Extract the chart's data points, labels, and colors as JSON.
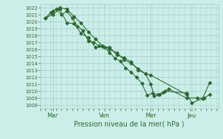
{
  "xlabel": "Pression niveau de la mer( hPa )",
  "bg_color": "#cceee8",
  "grid_color": "#99cccc",
  "line_color": "#2d6a2d",
  "ylim": [
    1007.5,
    1022.5
  ],
  "yticks": [
    1008,
    1009,
    1010,
    1011,
    1012,
    1013,
    1014,
    1015,
    1016,
    1017,
    1018,
    1019,
    1020,
    1021,
    1022
  ],
  "xlim": [
    0,
    100
  ],
  "xtick_labels": [
    "Mar",
    "Ven",
    "Mer",
    "Jeu"
  ],
  "xtick_positions": [
    7,
    36,
    62,
    85
  ],
  "line1_x": [
    3,
    6,
    9,
    12,
    15,
    18,
    21,
    24,
    27,
    30,
    33,
    36,
    39,
    42,
    45,
    48,
    51,
    54,
    57,
    60,
    63,
    66,
    69,
    72,
    82,
    88,
    92,
    95
  ],
  "line1_y": [
    1020.5,
    1021.3,
    1021.8,
    1021.0,
    1021.5,
    1020.5,
    1019.3,
    1018.7,
    1017.2,
    1017.0,
    1016.5,
    1016.3,
    1015.5,
    1014.7,
    1014.3,
    1013.3,
    1012.7,
    1012.0,
    1011.1,
    1009.4,
    1009.7,
    1009.5,
    1009.8,
    1010.3,
    1009.0,
    1009.0,
    1009.0,
    1009.5
  ],
  "line2_x": [
    3,
    7,
    11,
    15,
    19,
    23,
    27,
    31,
    35,
    39,
    43,
    47,
    51,
    55,
    59,
    62,
    64,
    67,
    70,
    82,
    85,
    91,
    95
  ],
  "line2_y": [
    1020.5,
    1021.0,
    1021.8,
    1019.8,
    1019.7,
    1018.3,
    1017.7,
    1016.3,
    1016.4,
    1016.3,
    1015.2,
    1014.8,
    1014.2,
    1013.0,
    1012.5,
    1011.0,
    1009.3,
    1009.5,
    1010.0,
    1009.7,
    1008.3,
    1008.9,
    1011.2
  ],
  "line3_x": [
    3,
    7,
    11,
    15,
    19,
    23,
    27,
    31,
    35,
    39,
    43,
    47,
    51,
    55,
    59,
    62,
    82
  ],
  "line3_y": [
    1020.5,
    1021.5,
    1022.0,
    1021.8,
    1020.7,
    1019.8,
    1018.5,
    1017.5,
    1016.5,
    1016.0,
    1015.5,
    1014.5,
    1014.0,
    1013.2,
    1012.5,
    1012.3,
    1009.5
  ]
}
